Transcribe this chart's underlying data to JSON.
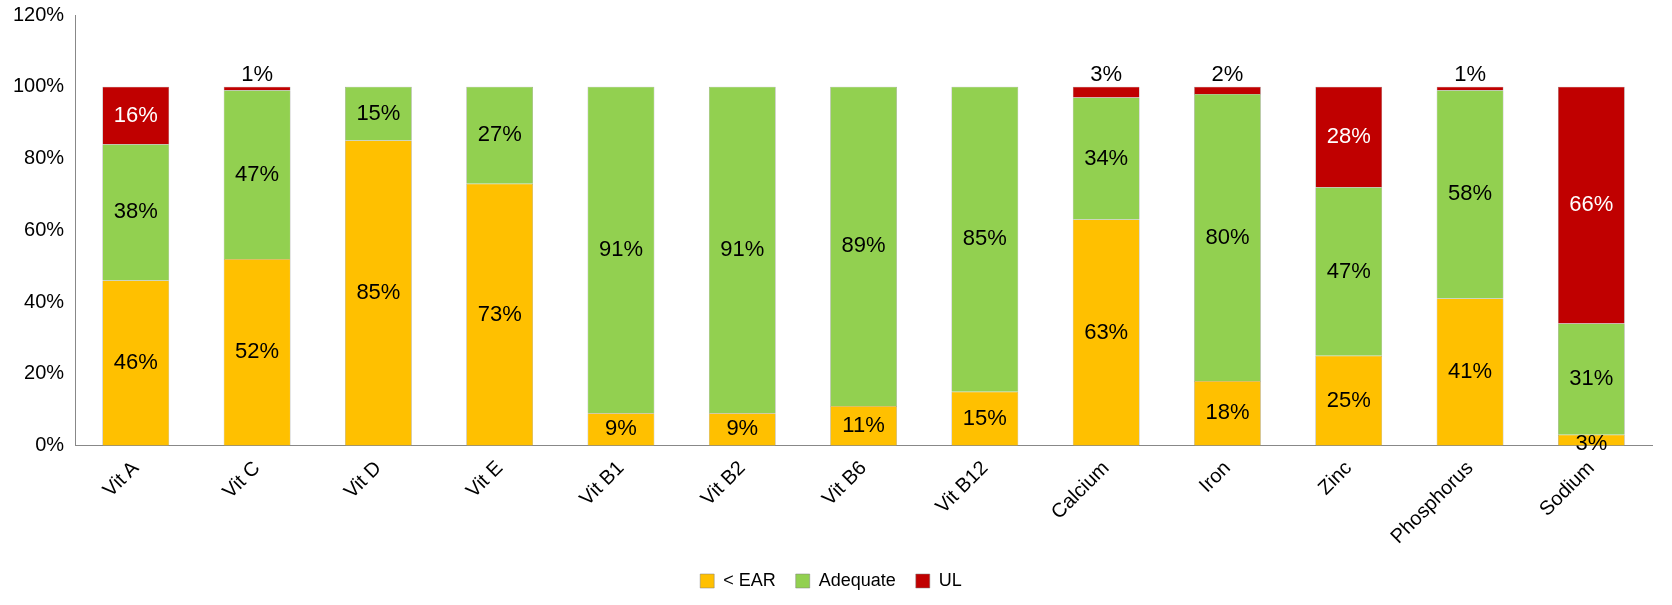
{
  "chart_data": {
    "type": "bar",
    "stacked": true,
    "categories": [
      "Vit A",
      "Vit C",
      "Vit D",
      "Vit E",
      "Vit B1",
      "Vit B2",
      "Vit B6",
      "Vit B12",
      "Calcium",
      "Iron",
      "Zinc",
      "Phosphorus",
      "Sodium"
    ],
    "series": [
      {
        "name": "< EAR",
        "color": "#ffc000",
        "values": [
          46,
          52,
          85,
          73,
          9,
          9,
          11,
          15,
          63,
          18,
          25,
          41,
          3
        ],
        "value_labels": [
          "46%",
          "52%",
          "85%",
          "73%",
          "9%",
          "9%",
          "11%",
          "15%",
          "63%",
          "18%",
          "25%",
          "41%",
          "3%"
        ]
      },
      {
        "name": "Adequate",
        "color": "#92d050",
        "values": [
          38,
          47,
          15,
          27,
          91,
          91,
          89,
          85,
          34,
          80,
          47,
          58,
          31
        ],
        "value_labels": [
          "38%",
          "47%",
          "15%",
          "27%",
          "91%",
          "91%",
          "89%",
          "85%",
          "34%",
          "80%",
          "47%",
          "58%",
          "31%"
        ]
      },
      {
        "name": "UL",
        "color": "#c00000",
        "values": [
          16,
          1,
          0,
          0,
          0,
          0,
          0,
          0,
          3,
          2,
          28,
          1,
          66
        ],
        "value_labels": [
          "16%",
          "1%",
          null,
          null,
          null,
          null,
          null,
          null,
          "3%",
          "2%",
          "28%",
          "1%",
          "66%"
        ]
      }
    ],
    "ylim": [
      0,
      120
    ],
    "yticks": [
      {
        "value": 0,
        "label": "0%"
      },
      {
        "value": 20,
        "label": "20%"
      },
      {
        "value": 40,
        "label": "40%"
      },
      {
        "value": 60,
        "label": "60%"
      },
      {
        "value": 80,
        "label": "80%"
      },
      {
        "value": 100,
        "label": "100%"
      },
      {
        "value": 120,
        "label": "120%"
      }
    ],
    "grid": false,
    "legend": "bottom"
  }
}
